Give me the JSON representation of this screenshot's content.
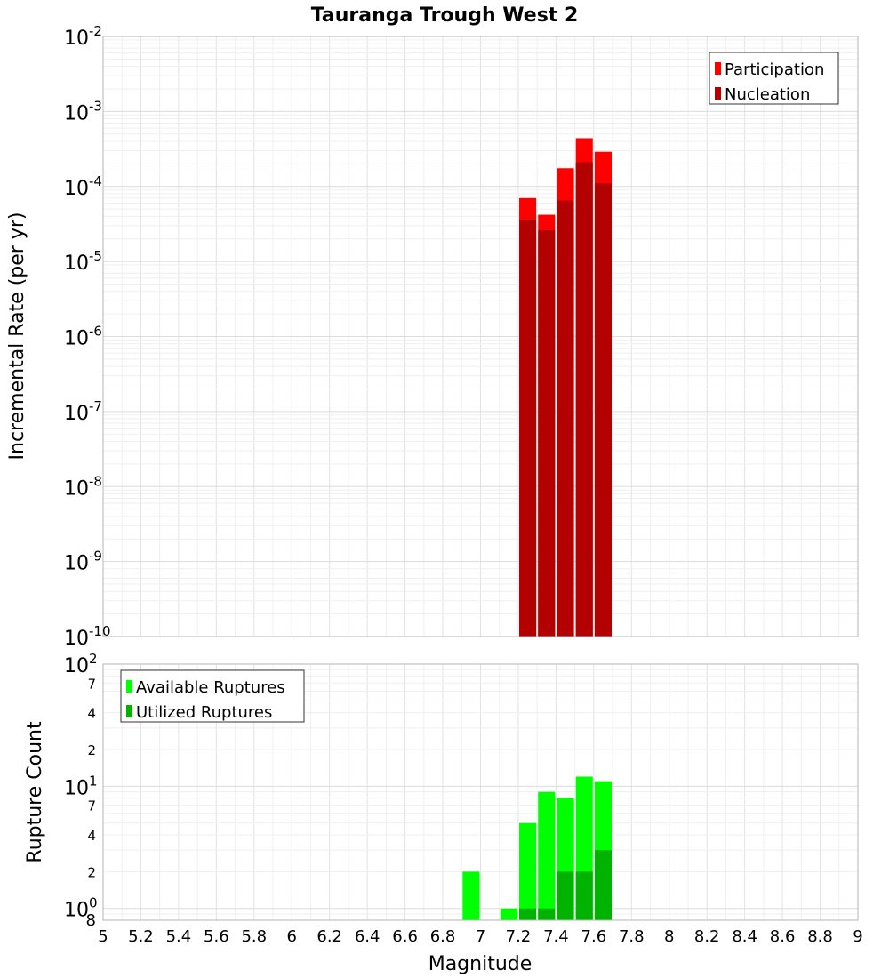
{
  "chart_data": [
    {
      "type": "bar",
      "title": "Tauranga Trough West 2",
      "xlabel": "",
      "ylabel": "Incremental Rate (per yr)",
      "yscale": "log",
      "xlim": [
        5,
        9
      ],
      "ylim": [
        1e-10,
        0.01
      ],
      "grid": true,
      "legend_position": "top-right",
      "y_ticks": [
        {
          "base": "10",
          "exp": "-10"
        },
        {
          "base": "10",
          "exp": "-9"
        },
        {
          "base": "10",
          "exp": "-8"
        },
        {
          "base": "10",
          "exp": "-7"
        },
        {
          "base": "10",
          "exp": "-6"
        },
        {
          "base": "10",
          "exp": "-5"
        },
        {
          "base": "10",
          "exp": "-4"
        },
        {
          "base": "10",
          "exp": "-3"
        },
        {
          "base": "10",
          "exp": "-2"
        }
      ],
      "bar_width": 0.09,
      "series": [
        {
          "name": "Participation",
          "color": "#ff0000",
          "x": [
            7.25,
            7.35,
            7.45,
            7.55,
            7.65
          ],
          "values": [
            7e-05,
            4.2e-05,
            0.000175,
            0.00044,
            0.00029
          ]
        },
        {
          "name": "Nucleation",
          "color": "#b30000",
          "x": [
            7.25,
            7.35,
            7.45,
            7.55,
            7.65
          ],
          "values": [
            3.6e-05,
            2.6e-05,
            6.5e-05,
            0.00021,
            0.00011
          ]
        }
      ]
    },
    {
      "type": "bar",
      "title": "",
      "xlabel": "Magnitude",
      "ylabel": "Rupture Count",
      "yscale": "log",
      "xlim": [
        5,
        9
      ],
      "ylim": [
        0.8,
        100
      ],
      "grid": true,
      "legend_position": "top-left",
      "x_ticks": [
        "5",
        "5.2",
        "5.4",
        "5.6",
        "5.8",
        "6",
        "6.2",
        "6.4",
        "6.6",
        "6.8",
        "7",
        "7.2",
        "7.4",
        "7.6",
        "7.8",
        "8",
        "8.2",
        "8.4",
        "8.6",
        "8.8",
        "9"
      ],
      "y_major_ticks": [
        {
          "base": "10",
          "exp": "0"
        },
        {
          "base": "10",
          "exp": "1"
        },
        {
          "base": "10",
          "exp": "2"
        }
      ],
      "y_minor_ticks": [
        {
          "label": "8",
          "value": 0.8
        },
        {
          "label": "2",
          "value": 2
        },
        {
          "label": "4",
          "value": 4
        },
        {
          "label": "7",
          "value": 7
        },
        {
          "label": "2",
          "value": 20
        },
        {
          "label": "4",
          "value": 40
        },
        {
          "label": "7",
          "value": 70
        }
      ],
      "bar_width": 0.09,
      "series": [
        {
          "name": "Available Ruptures",
          "color": "#00ff00",
          "x": [
            6.95,
            7.15,
            7.25,
            7.35,
            7.45,
            7.55,
            7.65
          ],
          "values": [
            2,
            1,
            5,
            9,
            8,
            12,
            11
          ]
        },
        {
          "name": "Utilized Ruptures",
          "color": "#00b300",
          "x": [
            7.25,
            7.35,
            7.45,
            7.55,
            7.65
          ],
          "values": [
            1,
            1,
            2,
            2,
            3
          ]
        }
      ]
    }
  ]
}
